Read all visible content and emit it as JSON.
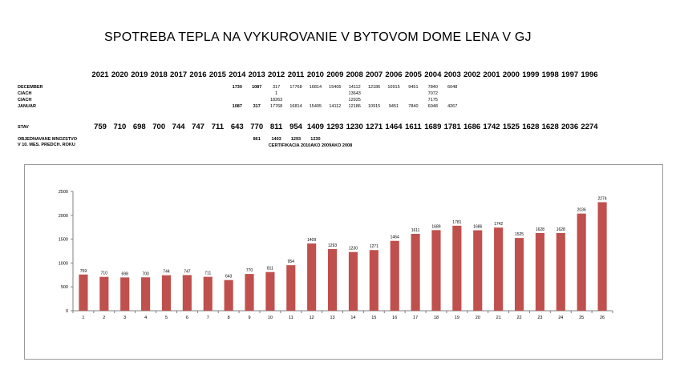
{
  "title": "SPOTREBA TEPLA NA VYKUROVANIE V BYTOVOM DOME LENA V GJ",
  "table": {
    "years": [
      "2021",
      "2020",
      "2019",
      "2018",
      "2017",
      "2016",
      "2015",
      "2014",
      "2013",
      "2012",
      "2011",
      "2010",
      "2009",
      "2008",
      "2007",
      "2006",
      "2005",
      "2004",
      "2003",
      "2002",
      "2001",
      "2000",
      "1999",
      "1998",
      "1997",
      "1996"
    ],
    "row_labels": {
      "december": "DECEMBER",
      "ciach1": "CIACH",
      "ciach2": "CIACH",
      "januar": "JANUAR",
      "stav": "STAV",
      "objednavane1": "OBJEDNAVANE MNOZSTVO",
      "objednavane2": "V 10. MES. PREDCH. ROKU"
    },
    "december": {
      "2014": "1730",
      "2013": "1087",
      "2012": "317",
      "2011": "17768",
      "2010": "16814",
      "2009": "15405",
      "2008": "14112",
      "2007": "12186",
      "2006": "10915",
      "2005": "9451",
      "2004": "7840",
      "2003": "6048"
    },
    "ciach1": {
      "2012": "1",
      "2008": "13643",
      "2004": "7072"
    },
    "ciach2": {
      "2012": "18263",
      "2008": "12925",
      "2004": "7175"
    },
    "januar": {
      "2014": "1087",
      "2013": "317",
      "2012": "17768",
      "2011": "16814",
      "2010": "15405",
      "2009": "14112",
      "2008": "12186",
      "2007": "10915",
      "2006": "9451",
      "2005": "7840",
      "2004": "6048",
      "2003": "4267"
    },
    "stav": [
      "759",
      "710",
      "698",
      "700",
      "744",
      "747",
      "711",
      "643",
      "770",
      "811",
      "954",
      "1409",
      "1293",
      "1230",
      "1271",
      "1464",
      "1611",
      "1689",
      "1781",
      "1686",
      "1742",
      "1525",
      "1628",
      "1628",
      "2036",
      "2274"
    ],
    "objednavane": {
      "2013": "861",
      "2012": "1403",
      "2011": "1293",
      "2010": "1230"
    },
    "certifikat": "CERTIFIKACIA 2010AKO 2009AKO 2008"
  },
  "chart_data": {
    "type": "bar",
    "categories": [
      "1",
      "2",
      "3",
      "4",
      "5",
      "6",
      "7",
      "8",
      "9",
      "10",
      "11",
      "12",
      "13",
      "14",
      "15",
      "16",
      "17",
      "18",
      "19",
      "20",
      "21",
      "22",
      "23",
      "24",
      "25",
      "26"
    ],
    "values": [
      759,
      710,
      698,
      700,
      744,
      747,
      711,
      643,
      770,
      811,
      954,
      1409,
      1293,
      1230,
      1271,
      1464,
      1611,
      1689,
      1781,
      1686,
      1742,
      1525,
      1628,
      1628,
      2036,
      2274
    ],
    "data_labels": [
      "759",
      "710",
      "698",
      "700",
      "744",
      "747",
      "711",
      "643",
      "770",
      "811",
      "954",
      "1409",
      "1293",
      "1230",
      "1271",
      "1464",
      "1611",
      "1689",
      "1781",
      "1686",
      "1742",
      "1525",
      "1628",
      "1628",
      "2036",
      "2274"
    ],
    "yticks": [
      "0",
      "500",
      "1000",
      "1500",
      "2000",
      "2500"
    ],
    "ylim": [
      0,
      2500
    ],
    "grid": false,
    "legend": "none",
    "bar_color": "#c0504d"
  }
}
